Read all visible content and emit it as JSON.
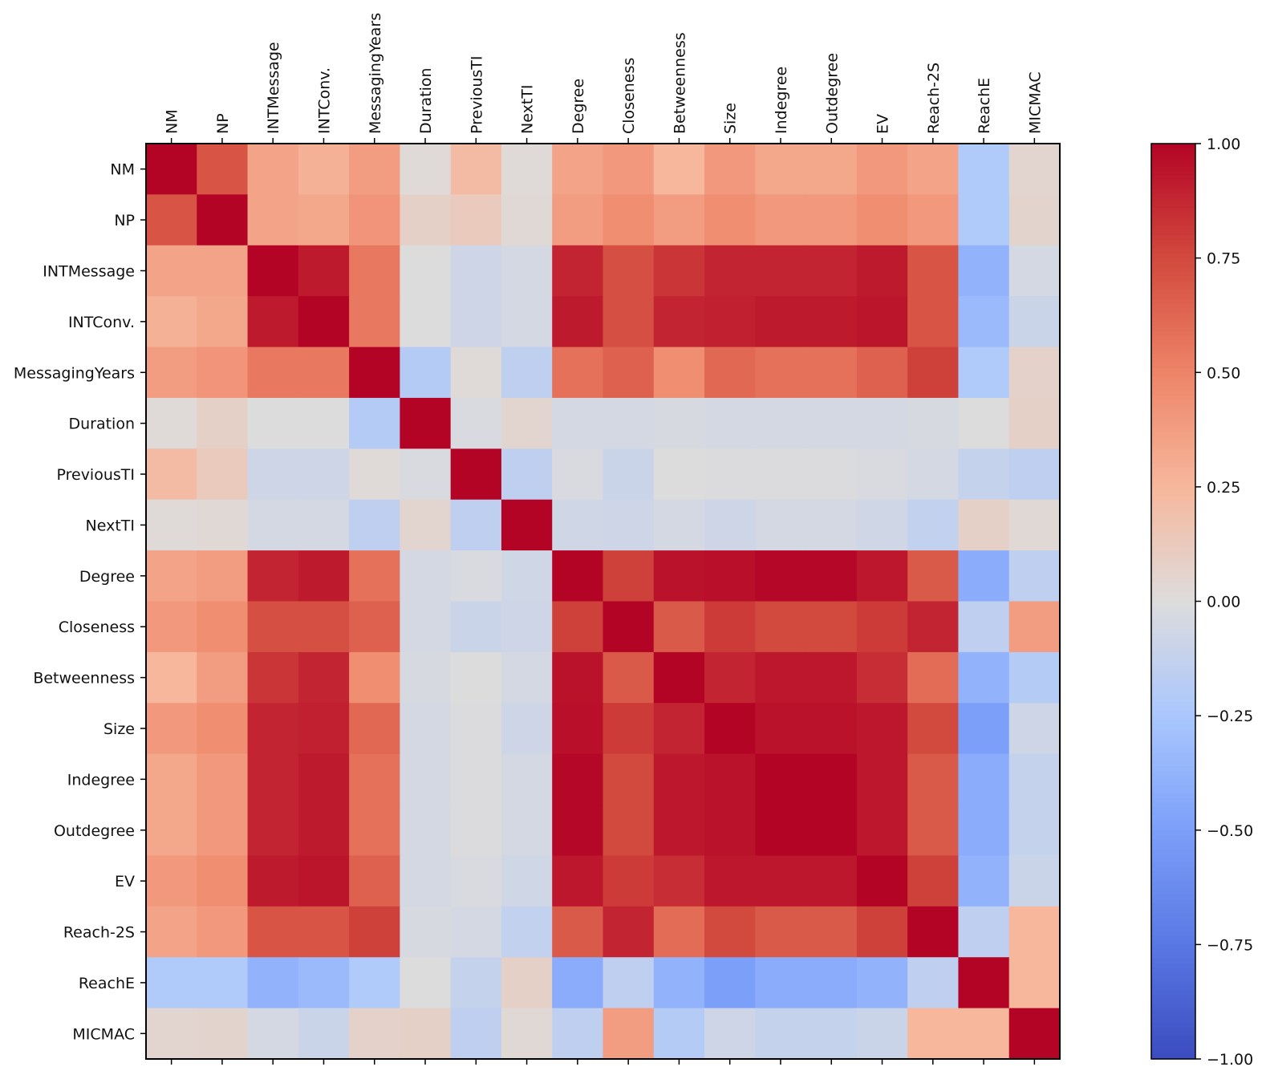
{
  "chart_data": {
    "type": "heatmap",
    "title": "",
    "xlabel": "",
    "ylabel": "",
    "colormap": "coolwarm",
    "vlim": [
      -1.0,
      1.0
    ],
    "labels": [
      "NM",
      "NP",
      "INTMessage",
      "INTConv.",
      "MessagingYears",
      "Duration",
      "PreviousTI",
      "NextTI",
      "Degree",
      "Closeness",
      "Betweenness",
      "Size",
      "Indegree",
      "Outdegree",
      "EV",
      "Reach-2S",
      "ReachE",
      "MICMAC"
    ],
    "colorbar_ticks": [
      {
        "value": 1.0,
        "label": "1.00"
      },
      {
        "value": 0.75,
        "label": "0.75"
      },
      {
        "value": 0.5,
        "label": "0.50"
      },
      {
        "value": 0.25,
        "label": "0.25"
      },
      {
        "value": 0.0,
        "label": "0.00"
      },
      {
        "value": -0.25,
        "label": "−0.25"
      },
      {
        "value": -0.5,
        "label": "−0.50"
      },
      {
        "value": -0.75,
        "label": "−0.75"
      },
      {
        "value": -1.0,
        "label": "−1.00"
      }
    ],
    "matrix": [
      [
        1.0,
        0.7,
        0.35,
        0.28,
        0.38,
        0.02,
        0.22,
        0.02,
        0.35,
        0.4,
        0.25,
        0.4,
        0.33,
        0.33,
        0.4,
        0.35,
        -0.22,
        0.05
      ],
      [
        0.7,
        1.0,
        0.35,
        0.33,
        0.42,
        0.08,
        0.12,
        0.03,
        0.38,
        0.45,
        0.38,
        0.45,
        0.4,
        0.4,
        0.45,
        0.4,
        -0.22,
        0.06
      ],
      [
        0.35,
        0.35,
        1.0,
        0.92,
        0.55,
        0.0,
        -0.08,
        -0.05,
        0.88,
        0.72,
        0.82,
        0.88,
        0.88,
        0.88,
        0.92,
        0.7,
        -0.38,
        -0.05
      ],
      [
        0.28,
        0.33,
        0.92,
        1.0,
        0.55,
        0.0,
        -0.08,
        -0.05,
        0.92,
        0.72,
        0.88,
        0.9,
        0.92,
        0.92,
        0.94,
        0.7,
        -0.33,
        -0.1
      ],
      [
        0.38,
        0.42,
        0.55,
        0.55,
        1.0,
        -0.2,
        0.02,
        -0.15,
        0.58,
        0.65,
        0.45,
        0.62,
        0.58,
        0.58,
        0.65,
        0.78,
        -0.22,
        0.07
      ],
      [
        0.02,
        0.08,
        0.0,
        0.0,
        -0.2,
        1.0,
        -0.02,
        0.05,
        -0.05,
        -0.05,
        -0.03,
        -0.05,
        -0.05,
        -0.05,
        -0.05,
        -0.03,
        0.0,
        0.08
      ],
      [
        0.22,
        0.12,
        -0.08,
        -0.08,
        0.02,
        -0.02,
        1.0,
        -0.15,
        -0.02,
        -0.1,
        0.0,
        -0.01,
        -0.01,
        -0.01,
        -0.02,
        -0.05,
        -0.12,
        -0.15
      ],
      [
        0.02,
        0.03,
        -0.05,
        -0.05,
        -0.15,
        0.05,
        -0.15,
        1.0,
        -0.07,
        -0.08,
        -0.05,
        -0.08,
        -0.05,
        -0.05,
        -0.07,
        -0.13,
        0.08,
        0.03
      ],
      [
        0.35,
        0.38,
        0.88,
        0.92,
        0.58,
        -0.05,
        -0.02,
        -0.07,
        1.0,
        0.78,
        0.95,
        0.96,
        0.99,
        0.99,
        0.93,
        0.68,
        -0.42,
        -0.15
      ],
      [
        0.4,
        0.45,
        0.72,
        0.72,
        0.65,
        -0.05,
        -0.1,
        -0.08,
        0.78,
        1.0,
        0.68,
        0.8,
        0.75,
        0.75,
        0.8,
        0.88,
        -0.15,
        0.38
      ],
      [
        0.25,
        0.38,
        0.82,
        0.88,
        0.45,
        -0.03,
        0.0,
        -0.05,
        0.95,
        0.68,
        1.0,
        0.88,
        0.93,
        0.93,
        0.85,
        0.6,
        -0.38,
        -0.2
      ],
      [
        0.4,
        0.45,
        0.88,
        0.9,
        0.62,
        -0.05,
        -0.01,
        -0.08,
        0.96,
        0.8,
        0.88,
        1.0,
        0.95,
        0.95,
        0.93,
        0.75,
        -0.5,
        -0.08
      ],
      [
        0.33,
        0.4,
        0.88,
        0.92,
        0.58,
        -0.05,
        -0.01,
        -0.05,
        0.99,
        0.75,
        0.93,
        0.95,
        1.0,
        1.0,
        0.93,
        0.68,
        -0.42,
        -0.12
      ],
      [
        0.33,
        0.4,
        0.88,
        0.92,
        0.58,
        -0.05,
        -0.01,
        -0.05,
        0.99,
        0.75,
        0.93,
        0.95,
        1.0,
        1.0,
        0.93,
        0.68,
        -0.42,
        -0.12
      ],
      [
        0.4,
        0.45,
        0.92,
        0.94,
        0.65,
        -0.05,
        -0.02,
        -0.07,
        0.93,
        0.8,
        0.85,
        0.93,
        0.93,
        0.93,
        1.0,
        0.78,
        -0.38,
        -0.1
      ],
      [
        0.35,
        0.4,
        0.7,
        0.7,
        0.78,
        -0.03,
        -0.05,
        -0.13,
        0.68,
        0.88,
        0.6,
        0.75,
        0.68,
        0.68,
        0.78,
        1.0,
        -0.15,
        0.25
      ],
      [
        -0.22,
        -0.22,
        -0.38,
        -0.33,
        -0.22,
        0.0,
        -0.12,
        0.08,
        -0.42,
        -0.15,
        -0.38,
        -0.5,
        -0.42,
        -0.42,
        -0.38,
        -0.15,
        1.0,
        0.25
      ],
      [
        0.05,
        0.06,
        -0.05,
        -0.1,
        0.07,
        0.08,
        -0.15,
        0.03,
        -0.15,
        0.38,
        -0.2,
        -0.08,
        -0.12,
        -0.12,
        -0.1,
        0.25,
        0.25,
        1.0
      ]
    ]
  }
}
